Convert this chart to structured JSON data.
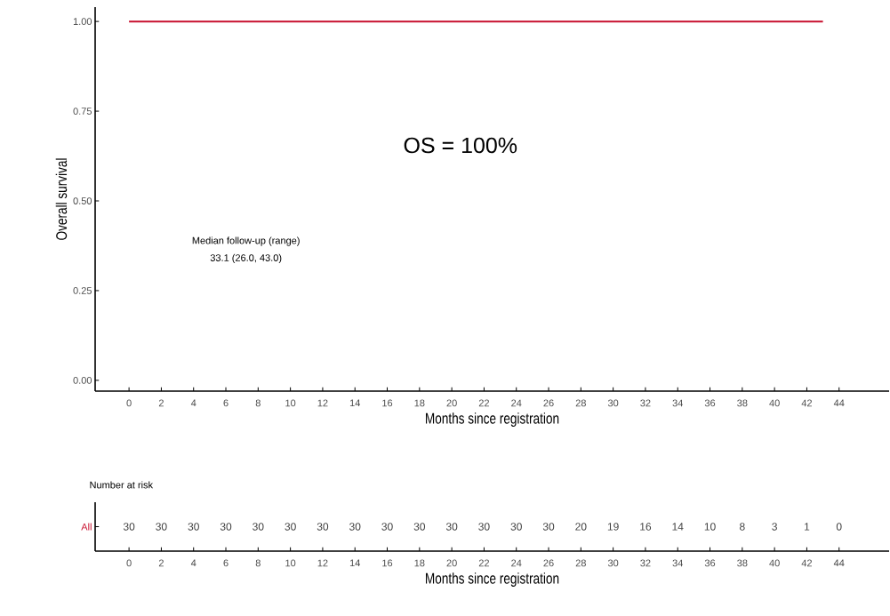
{
  "chart_data": [
    {
      "type": "step",
      "xlabel": "Months since registration",
      "ylabel": "Overall survival",
      "x": [
        0,
        43
      ],
      "values": [
        1,
        1
      ],
      "color": "#c8102e",
      "xlim": [
        -2.1,
        47.1
      ],
      "ylim": [
        -0.03,
        1.04
      ],
      "xticks": [
        0,
        2,
        4,
        6,
        8,
        10,
        12,
        14,
        16,
        18,
        20,
        22,
        24,
        26,
        28,
        30,
        32,
        34,
        36,
        38,
        40,
        42,
        44
      ],
      "yticks": [
        {
          "value": 0,
          "label": "0.00"
        },
        {
          "value": 0.25,
          "label": "0.25"
        },
        {
          "value": 0.5,
          "label": "0.50"
        },
        {
          "value": 0.75,
          "label": "0.75"
        },
        {
          "value": 1,
          "label": "1.00"
        }
      ],
      "annotations": [
        "OS = 100%",
        "Median follow-up (range)",
        "33.1 (26.0, 43.0)"
      ]
    },
    {
      "type": "heatmap",
      "title": "Number at risk",
      "xlabel": "Months since registration",
      "categories": [
        "0",
        "2",
        "4",
        "6",
        "8",
        "10",
        "12",
        "14",
        "16",
        "18",
        "20",
        "22",
        "24",
        "26",
        "28",
        "30",
        "32",
        "34",
        "36",
        "38",
        "40",
        "42",
        "44"
      ],
      "y_categories": [
        "All"
      ],
      "color": "#c8102e",
      "cells": [
        [
          30,
          30,
          30,
          30,
          30,
          30,
          30,
          30,
          30,
          30,
          30,
          30,
          30,
          30,
          20,
          19,
          16,
          14,
          10,
          8,
          3,
          1,
          0
        ]
      ],
      "data_labels": true
    }
  ]
}
